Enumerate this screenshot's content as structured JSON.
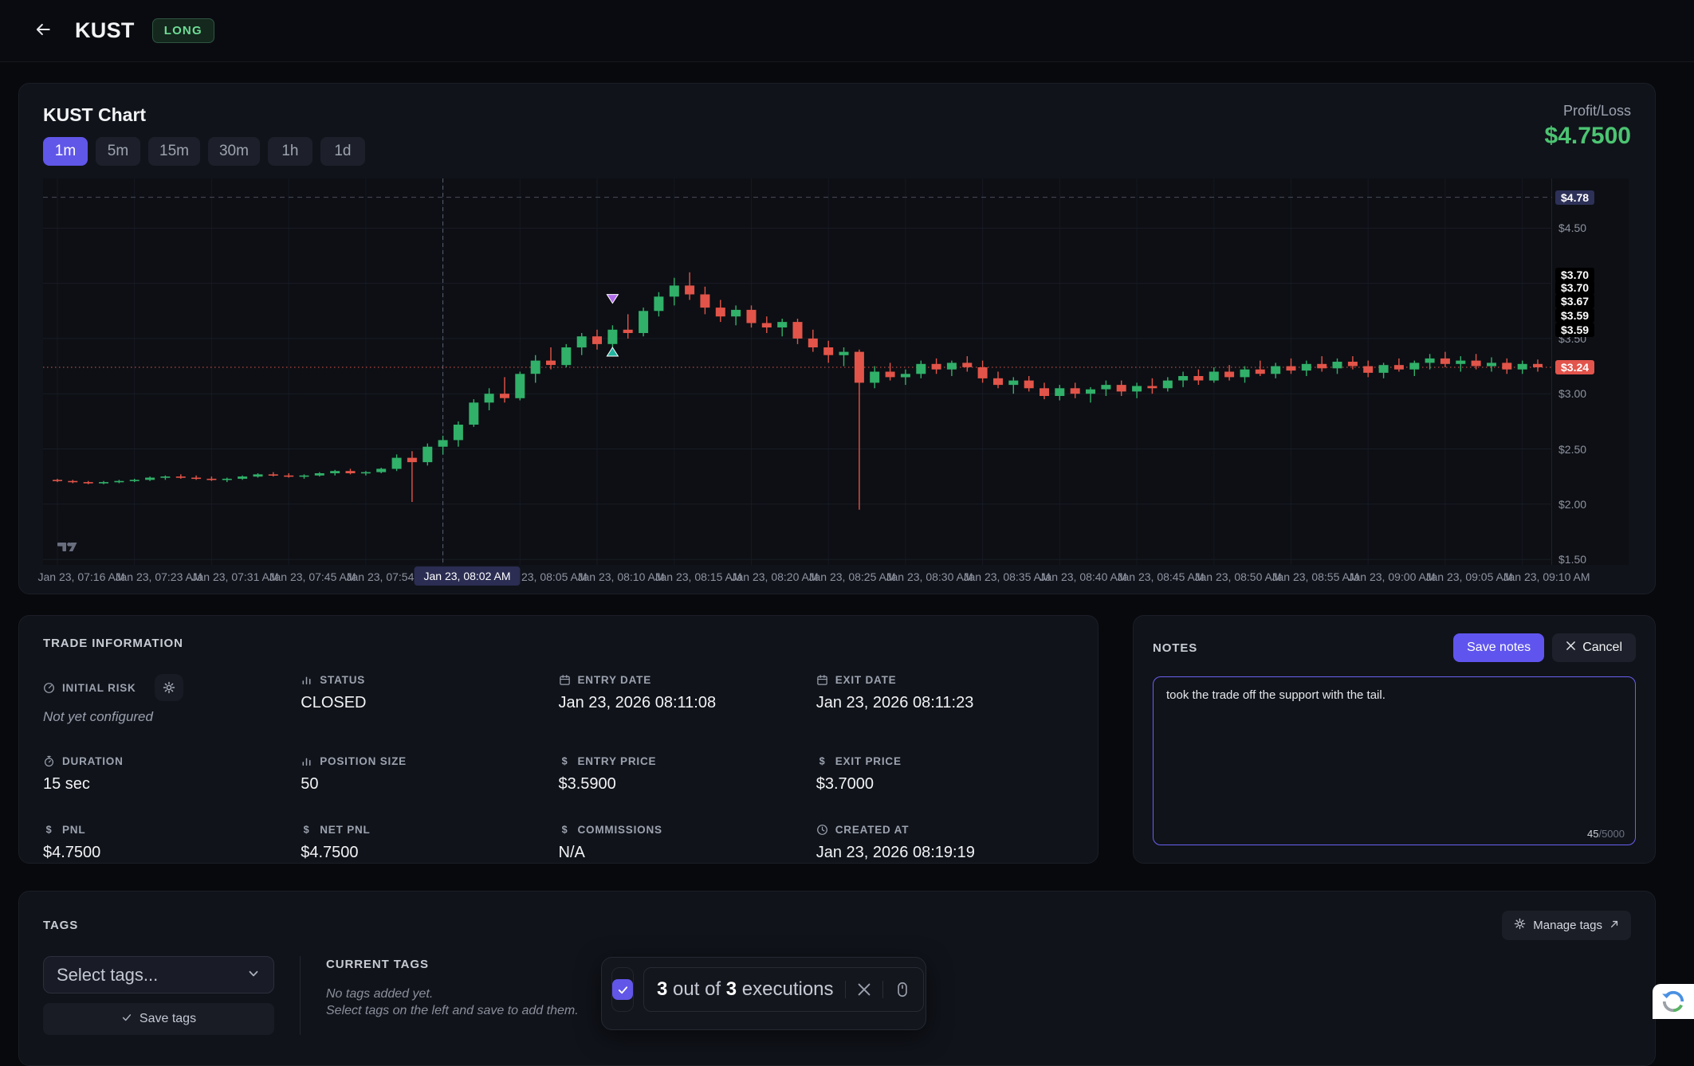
{
  "topbar": {
    "title": "KUST",
    "side_badge": "LONG"
  },
  "chart_card": {
    "title": "KUST Chart",
    "timeframes": [
      {
        "label": "1m",
        "active": true
      },
      {
        "label": "5m",
        "active": false
      },
      {
        "label": "15m",
        "active": false
      },
      {
        "label": "30m",
        "active": false
      },
      {
        "label": "1h",
        "active": false
      },
      {
        "label": "1d",
        "active": false
      }
    ],
    "profit_loss_label": "Profit/Loss",
    "profit_loss_value": "$4.7500"
  },
  "chart_data": {
    "type": "candlestick",
    "symbol": "KUST",
    "interval": "1m",
    "ylim": [
      1.45,
      4.95
    ],
    "grid": true,
    "gridlines_h": [
      4.5,
      4.0,
      3.5,
      3.0,
      2.5,
      2.0,
      1.5
    ],
    "colors": {
      "up": "#31b069",
      "down": "#e25449",
      "last_price": "#e2544c"
    },
    "time_labels": [
      "Jan 23, 07:16 AM",
      "Jan 23, 07:23 AM",
      "Jan 23, 07:31 AM",
      "Jan 23, 07:45 AM",
      "Jan 23, 07:54 AM",
      "Jan 23, 08:02 AM",
      "Jan 23, 08:05 AM",
      "Jan 23, 08:10 AM",
      "Jan 23, 08:15 AM",
      "Jan 23, 08:20 AM",
      "Jan 23, 08:25 AM",
      "Jan 23, 08:30 AM",
      "Jan 23, 08:35 AM",
      "Jan 23, 08:40 AM",
      "Jan 23, 08:45 AM",
      "Jan 23, 08:50 AM",
      "Jan 23, 08:55 AM",
      "Jan 23, 09:00 AM",
      "Jan 23, 09:05 AM",
      "Jan 23, 09:10 AM"
    ],
    "crosshair_label_index": 5,
    "crosshair_time": "Jan 23, 08:02 AM",
    "levels": {
      "dashed_gray": 4.78,
      "last_price": 3.24
    },
    "price_axis": [
      {
        "text": "$4.78",
        "price": 4.78,
        "style": "indigo"
      },
      {
        "text": "$4.50",
        "price": 4.5,
        "style": "plain"
      },
      {
        "text": "$3.50",
        "price": 3.5,
        "style": "plain"
      },
      {
        "text": "$3.00",
        "price": 3.0,
        "style": "plain"
      },
      {
        "text": "$2.50",
        "price": 2.5,
        "style": "plain"
      },
      {
        "text": "$2.00",
        "price": 2.0,
        "style": "plain"
      },
      {
        "text": "$1.50",
        "price": 1.5,
        "style": "plain"
      },
      {
        "text": "$3.70",
        "price": 4.08,
        "style": "black"
      },
      {
        "text": "$3.70",
        "price": 3.96,
        "style": "black"
      },
      {
        "text": "$3.67",
        "price": 3.84,
        "style": "black"
      },
      {
        "text": "$3.59",
        "price": 3.71,
        "style": "black"
      },
      {
        "text": "$3.59",
        "price": 3.58,
        "style": "black"
      },
      {
        "text": "$3.24",
        "price": 3.24,
        "style": "red"
      }
    ],
    "markers": [
      {
        "index": 36,
        "price": 3.82,
        "dir": "down",
        "color": "#b16ceb",
        "name": "exit-marker"
      },
      {
        "index": 36,
        "price": 3.42,
        "dir": "up",
        "color": "#22b5a0",
        "name": "entry-marker"
      }
    ],
    "candles": [
      [
        2.22,
        2.23,
        2.2,
        2.21
      ],
      [
        2.21,
        2.22,
        2.19,
        2.2
      ],
      [
        2.2,
        2.21,
        2.18,
        2.19
      ],
      [
        2.19,
        2.21,
        2.18,
        2.2
      ],
      [
        2.2,
        2.22,
        2.19,
        2.21
      ],
      [
        2.21,
        2.23,
        2.2,
        2.22
      ],
      [
        2.22,
        2.25,
        2.21,
        2.24
      ],
      [
        2.24,
        2.26,
        2.22,
        2.25
      ],
      [
        2.25,
        2.27,
        2.23,
        2.24
      ],
      [
        2.24,
        2.26,
        2.22,
        2.23
      ],
      [
        2.23,
        2.25,
        2.21,
        2.22
      ],
      [
        2.22,
        2.24,
        2.2,
        2.23
      ],
      [
        2.23,
        2.26,
        2.22,
        2.25
      ],
      [
        2.25,
        2.28,
        2.24,
        2.27
      ],
      [
        2.27,
        2.29,
        2.25,
        2.26
      ],
      [
        2.26,
        2.28,
        2.24,
        2.25
      ],
      [
        2.25,
        2.27,
        2.23,
        2.26
      ],
      [
        2.26,
        2.29,
        2.25,
        2.28
      ],
      [
        2.28,
        2.31,
        2.26,
        2.3
      ],
      [
        2.3,
        2.32,
        2.27,
        2.28
      ],
      [
        2.28,
        2.3,
        2.26,
        2.29
      ],
      [
        2.29,
        2.33,
        2.28,
        2.32
      ],
      [
        2.32,
        2.45,
        2.3,
        2.42
      ],
      [
        2.42,
        2.48,
        2.02,
        2.38
      ],
      [
        2.38,
        2.55,
        2.35,
        2.52
      ],
      [
        2.52,
        2.62,
        2.45,
        2.58
      ],
      [
        2.58,
        2.75,
        2.52,
        2.72
      ],
      [
        2.72,
        2.95,
        2.7,
        2.92
      ],
      [
        2.92,
        3.05,
        2.85,
        3.0
      ],
      [
        3.0,
        3.15,
        2.92,
        2.96
      ],
      [
        2.96,
        3.2,
        2.94,
        3.18
      ],
      [
        3.18,
        3.35,
        3.1,
        3.3
      ],
      [
        3.3,
        3.42,
        3.22,
        3.26
      ],
      [
        3.26,
        3.45,
        3.24,
        3.42
      ],
      [
        3.42,
        3.55,
        3.35,
        3.52
      ],
      [
        3.52,
        3.58,
        3.4,
        3.45
      ],
      [
        3.45,
        3.62,
        3.42,
        3.58
      ],
      [
        3.58,
        3.72,
        3.5,
        3.55
      ],
      [
        3.55,
        3.78,
        3.52,
        3.75
      ],
      [
        3.75,
        3.92,
        3.7,
        3.88
      ],
      [
        3.88,
        4.05,
        3.8,
        3.98
      ],
      [
        3.98,
        4.1,
        3.85,
        3.9
      ],
      [
        3.9,
        3.97,
        3.72,
        3.78
      ],
      [
        3.78,
        3.85,
        3.65,
        3.7
      ],
      [
        3.7,
        3.8,
        3.62,
        3.76
      ],
      [
        3.76,
        3.8,
        3.6,
        3.64
      ],
      [
        3.64,
        3.7,
        3.55,
        3.6
      ],
      [
        3.6,
        3.68,
        3.52,
        3.65
      ],
      [
        3.65,
        3.68,
        3.45,
        3.5
      ],
      [
        3.5,
        3.58,
        3.38,
        3.42
      ],
      [
        3.42,
        3.48,
        3.28,
        3.35
      ],
      [
        3.35,
        3.42,
        3.25,
        3.38
      ],
      [
        3.38,
        3.4,
        1.95,
        3.1
      ],
      [
        3.1,
        3.25,
        3.05,
        3.2
      ],
      [
        3.2,
        3.28,
        3.12,
        3.15
      ],
      [
        3.15,
        3.22,
        3.08,
        3.18
      ],
      [
        3.18,
        3.3,
        3.14,
        3.27
      ],
      [
        3.27,
        3.32,
        3.18,
        3.22
      ],
      [
        3.22,
        3.3,
        3.16,
        3.28
      ],
      [
        3.28,
        3.34,
        3.2,
        3.24
      ],
      [
        3.24,
        3.3,
        3.1,
        3.14
      ],
      [
        3.14,
        3.2,
        3.05,
        3.08
      ],
      [
        3.08,
        3.15,
        3.0,
        3.12
      ],
      [
        3.12,
        3.16,
        3.02,
        3.05
      ],
      [
        3.05,
        3.1,
        2.95,
        2.98
      ],
      [
        2.98,
        3.08,
        2.94,
        3.05
      ],
      [
        3.05,
        3.1,
        2.96,
        3.0
      ],
      [
        3.0,
        3.06,
        2.92,
        3.04
      ],
      [
        3.04,
        3.12,
        2.98,
        3.08
      ],
      [
        3.08,
        3.12,
        2.98,
        3.02
      ],
      [
        3.02,
        3.1,
        2.96,
        3.07
      ],
      [
        3.07,
        3.14,
        3.0,
        3.05
      ],
      [
        3.05,
        3.15,
        3.02,
        3.12
      ],
      [
        3.12,
        3.2,
        3.06,
        3.16
      ],
      [
        3.16,
        3.22,
        3.08,
        3.12
      ],
      [
        3.12,
        3.24,
        3.1,
        3.2
      ],
      [
        3.2,
        3.26,
        3.12,
        3.15
      ],
      [
        3.15,
        3.25,
        3.1,
        3.22
      ],
      [
        3.22,
        3.3,
        3.16,
        3.18
      ],
      [
        3.18,
        3.28,
        3.14,
        3.25
      ],
      [
        3.25,
        3.32,
        3.18,
        3.21
      ],
      [
        3.21,
        3.3,
        3.16,
        3.27
      ],
      [
        3.27,
        3.34,
        3.2,
        3.23
      ],
      [
        3.23,
        3.32,
        3.18,
        3.29
      ],
      [
        3.29,
        3.34,
        3.22,
        3.25
      ],
      [
        3.25,
        3.3,
        3.15,
        3.19
      ],
      [
        3.19,
        3.28,
        3.14,
        3.26
      ],
      [
        3.26,
        3.32,
        3.2,
        3.22
      ],
      [
        3.22,
        3.3,
        3.16,
        3.28
      ],
      [
        3.28,
        3.36,
        3.22,
        3.32
      ],
      [
        3.32,
        3.38,
        3.24,
        3.27
      ],
      [
        3.27,
        3.34,
        3.2,
        3.3
      ],
      [
        3.3,
        3.36,
        3.22,
        3.25
      ],
      [
        3.25,
        3.33,
        3.2,
        3.28
      ],
      [
        3.28,
        3.32,
        3.18,
        3.22
      ],
      [
        3.22,
        3.3,
        3.18,
        3.27
      ],
      [
        3.27,
        3.31,
        3.2,
        3.24
      ]
    ]
  },
  "trade_info": {
    "title": "TRADE INFORMATION",
    "items": [
      {
        "label": "INITIAL RISK",
        "icon": "gauge",
        "value": "Not yet configured",
        "muted": true,
        "gear": true
      },
      {
        "label": "STATUS",
        "icon": "bars",
        "value": "CLOSED"
      },
      {
        "label": "ENTRY DATE",
        "icon": "calendar",
        "value": "Jan 23, 2026 08:11:08"
      },
      {
        "label": "EXIT DATE",
        "icon": "calendar",
        "value": "Jan 23, 2026 08:11:23"
      },
      {
        "label": "DURATION",
        "icon": "stopwatch",
        "value": "15 sec"
      },
      {
        "label": "POSITION SIZE",
        "icon": "bars",
        "value": "50"
      },
      {
        "label": "ENTRY PRICE",
        "icon": "dollar",
        "value": "$3.5900"
      },
      {
        "label": "EXIT PRICE",
        "icon": "dollar",
        "value": "$3.7000"
      },
      {
        "label": "PNL",
        "icon": "dollar",
        "value": "$4.7500"
      },
      {
        "label": "NET PNL",
        "icon": "dollar",
        "value": "$4.7500"
      },
      {
        "label": "COMMISSIONS",
        "icon": "dollar",
        "value": "N/A"
      },
      {
        "label": "CREATED AT",
        "icon": "clock",
        "value": "Jan 23, 2026 08:19:19"
      }
    ]
  },
  "notes": {
    "title": "NOTES",
    "save_label": "Save notes",
    "cancel_label": "Cancel",
    "text": "took the trade off the support with the tail.",
    "char_count": "45",
    "char_max": "/5000"
  },
  "tags": {
    "title": "TAGS",
    "manage_label": "Manage tags",
    "select_placeholder": "Select tags...",
    "save_label": "Save tags",
    "current_title": "CURRENT TAGS",
    "empty_lines": [
      "No tags added yet.",
      "Select tags on the left and save to add them."
    ]
  },
  "exec_bar": {
    "count_a": "3",
    "middle": "out of",
    "count_b": "3",
    "suffix": "executions",
    "checked": true
  }
}
